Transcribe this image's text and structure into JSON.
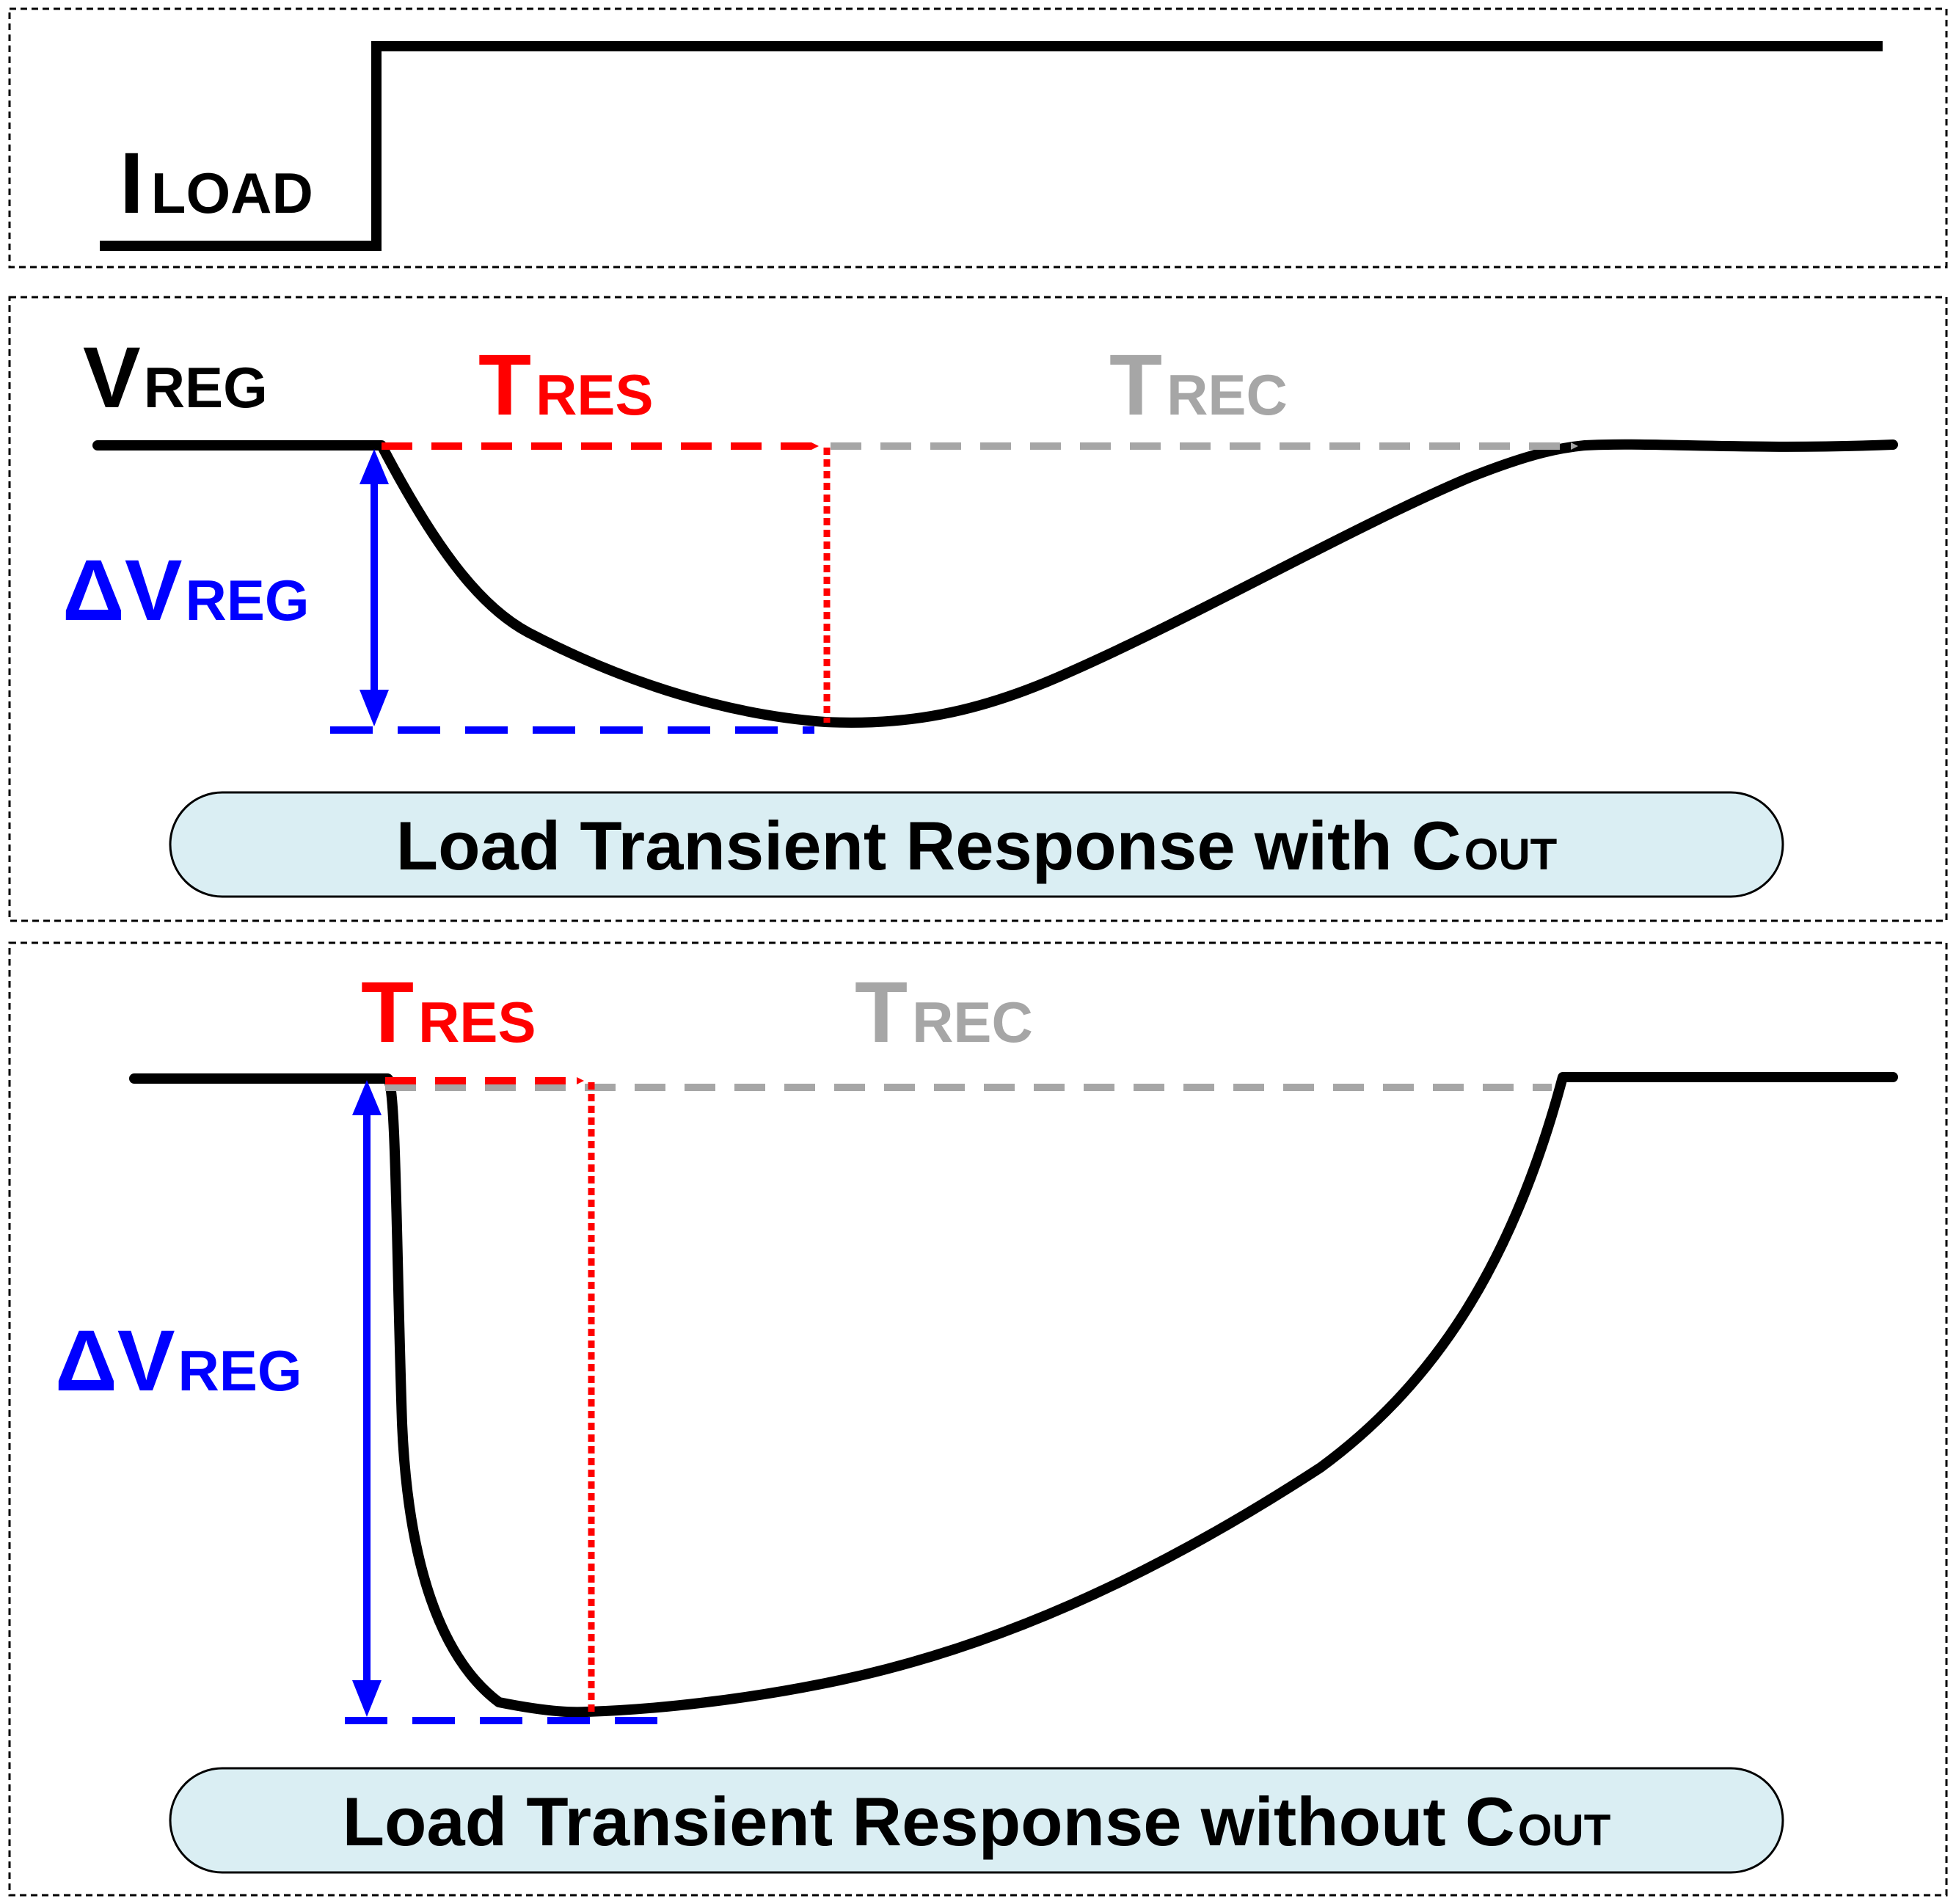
{
  "panel_load": {
    "label_main": "I",
    "label_sub": "LOAD"
  },
  "panel_with_cout": {
    "vreg_main": "V",
    "vreg_sub": "REG",
    "tres_main": "T",
    "tres_sub": "RES",
    "trec_main": "T",
    "trec_sub": "REC",
    "dv_main": "ΔV",
    "dv_sub": "REG",
    "caption_main": "Load Transient Response with C",
    "caption_sub": "OUT"
  },
  "panel_without_cout": {
    "tres_main": "T",
    "tres_sub": "RES",
    "trec_main": "T",
    "trec_sub": "REC",
    "dv_main": "ΔV",
    "dv_sub": "REG",
    "caption_main": "Load Transient Response without C",
    "caption_sub": "OUT"
  },
  "colors": {
    "waveform": "#000000",
    "response_time": "#ff0000",
    "recovery_time": "#a6a6a6",
    "deviation": "#0000ff",
    "caption_fill": "#daeef3",
    "panel_border": "#000000"
  }
}
